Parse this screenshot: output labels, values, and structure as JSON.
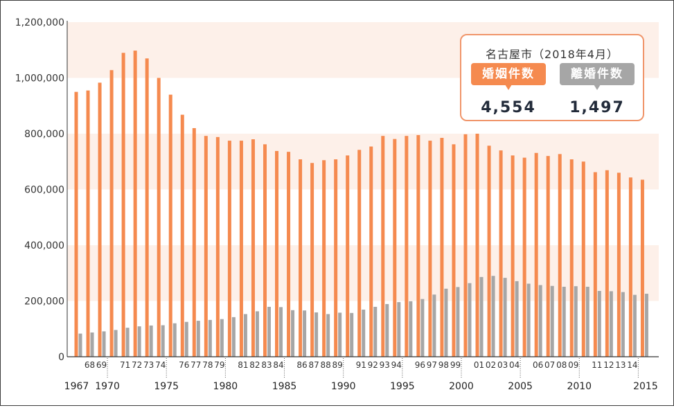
{
  "chart_data": {
    "type": "bar",
    "y_ticks": [
      "1,200,000",
      "1,000,000",
      "800,000",
      "600,000",
      "400,000",
      "200,000",
      "0"
    ],
    "ylim": [
      0,
      1200000
    ],
    "years": [
      1967,
      1968,
      1969,
      1970,
      1971,
      1972,
      1973,
      1974,
      1975,
      1976,
      1977,
      1978,
      1979,
      1980,
      1981,
      1982,
      1983,
      1984,
      1985,
      1986,
      1987,
      1988,
      1989,
      1990,
      1991,
      1992,
      1993,
      1994,
      1995,
      1996,
      1997,
      1998,
      1999,
      2000,
      2001,
      2002,
      2003,
      2004,
      2005,
      2006,
      2007,
      2008,
      2009,
      2010,
      2011,
      2012,
      2013,
      2014,
      2015
    ],
    "x_labels_short": [
      "",
      "68",
      "69",
      "",
      "71",
      "72",
      "73",
      "74",
      "",
      "76",
      "77",
      "78",
      "79",
      "",
      "81",
      "82",
      "83",
      "84",
      "",
      "86",
      "87",
      "88",
      "89",
      "",
      "91",
      "92",
      "93",
      "94",
      "",
      "96",
      "97",
      "98",
      "99",
      "",
      "01",
      "02",
      "03",
      "04",
      "",
      "06",
      "07",
      "08",
      "09",
      "",
      "11",
      "12",
      "13",
      "14",
      ""
    ],
    "x_labels_major": [
      {
        "year": 1967,
        "label": "1967"
      },
      {
        "year": 1970,
        "label": "1970"
      },
      {
        "year": 1975,
        "label": "1975"
      },
      {
        "year": 1980,
        "label": "1980"
      },
      {
        "year": 1985,
        "label": "1985"
      },
      {
        "year": 1990,
        "label": "1990"
      },
      {
        "year": 1995,
        "label": "1995"
      },
      {
        "year": 2000,
        "label": "2000"
      },
      {
        "year": 2005,
        "label": "2005"
      },
      {
        "year": 2010,
        "label": "2010"
      },
      {
        "year": 2015,
        "label": "2015"
      }
    ],
    "series": [
      {
        "name": "婚姻件数",
        "color": "#f58a4f",
        "values": [
          950000,
          955000,
          983000,
          1028000,
          1090000,
          1098000,
          1070000,
          1000000,
          940000,
          868000,
          820000,
          792000,
          788000,
          775000,
          775000,
          780000,
          762000,
          738000,
          735000,
          708000,
          695000,
          705000,
          708000,
          722000,
          742000,
          754000,
          792000,
          781000,
          792000,
          795000,
          775000,
          785000,
          762000,
          798000,
          800000,
          757000,
          740000,
          722000,
          714000,
          731000,
          720000,
          727000,
          708000,
          700000,
          662000,
          669000,
          660000,
          643000,
          635000
        ]
      },
      {
        "name": "離婚件数",
        "color": "#a6a6a6",
        "values": [
          83000,
          87000,
          91000,
          96000,
          104000,
          109000,
          112000,
          113000,
          120000,
          125000,
          129000,
          132000,
          135000,
          142000,
          153000,
          163000,
          179000,
          178000,
          167000,
          166000,
          159000,
          153000,
          158000,
          157000,
          169000,
          179000,
          189000,
          196000,
          199000,
          207000,
          223000,
          244000,
          250000,
          264000,
          286000,
          290000,
          283000,
          271000,
          262000,
          257000,
          254000,
          251000,
          253000,
          251000,
          236000,
          235000,
          232000,
          222000,
          226000
        ]
      }
    ]
  },
  "info_box": {
    "title": "名古屋市（2018年4月）",
    "marriage_label": "婚姻件数",
    "divorce_label": "離婚件数",
    "marriage_value": "4,554",
    "divorce_value": "1,497"
  }
}
